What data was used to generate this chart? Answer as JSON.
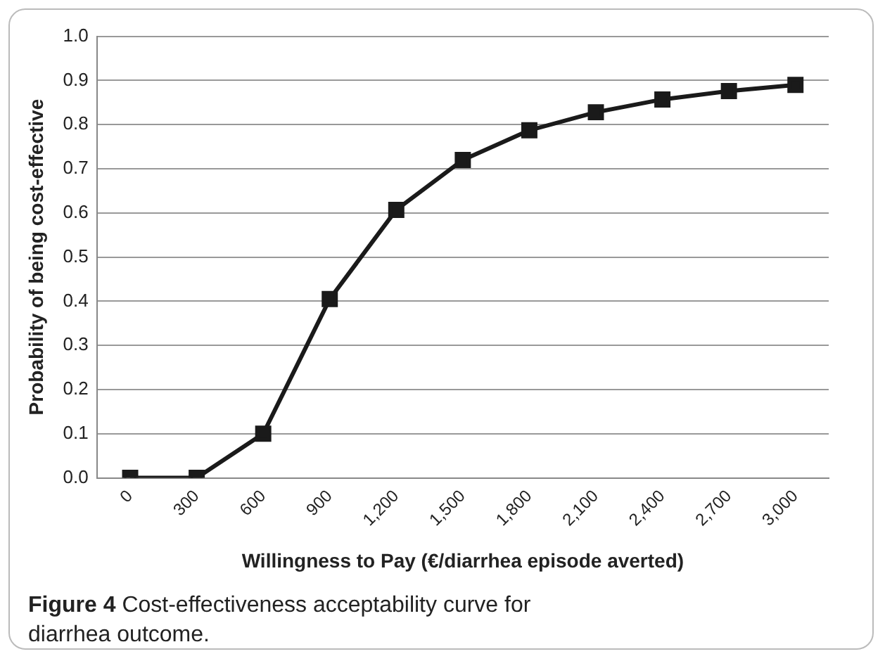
{
  "chart_data": {
    "type": "line",
    "xlabel": "Willingness to Pay (€/diarrhea episode averted)",
    "ylabel": "Probability of being cost-effective",
    "categories": [
      "0",
      "300",
      "600",
      "900",
      "1,200",
      "1,500",
      "1,800",
      "2,100",
      "2,400",
      "2,700",
      "3,000"
    ],
    "series": [
      {
        "color": "#1a1a1a",
        "values": [
          0,
          0,
          0.1,
          0.405,
          0.607,
          0.72,
          0.787,
          0.828,
          0.857,
          0.876,
          0.89
        ]
      }
    ],
    "ylim": [
      0,
      1
    ],
    "yticks": [
      {
        "value": 0,
        "label": "0.0"
      },
      {
        "value": 0.1,
        "label": "0.1"
      },
      {
        "value": 0.2,
        "label": "0.2"
      },
      {
        "value": 0.3,
        "label": "0.3"
      },
      {
        "value": 0.4,
        "label": "0.4"
      },
      {
        "value": 0.5,
        "label": "0.5"
      },
      {
        "value": 0.6,
        "label": "0.6"
      },
      {
        "value": 0.7,
        "label": "0.7"
      },
      {
        "value": 0.8,
        "label": "0.8"
      },
      {
        "value": 0.9,
        "label": "0.9"
      },
      {
        "value": 1,
        "label": "1.0"
      }
    ],
    "grid": "y",
    "legend": false,
    "marker": "square",
    "line_style": "solid",
    "annotations": [
      "Figure 4",
      "Cost-effectiveness acceptability curve for diarrhea outcome."
    ]
  }
}
